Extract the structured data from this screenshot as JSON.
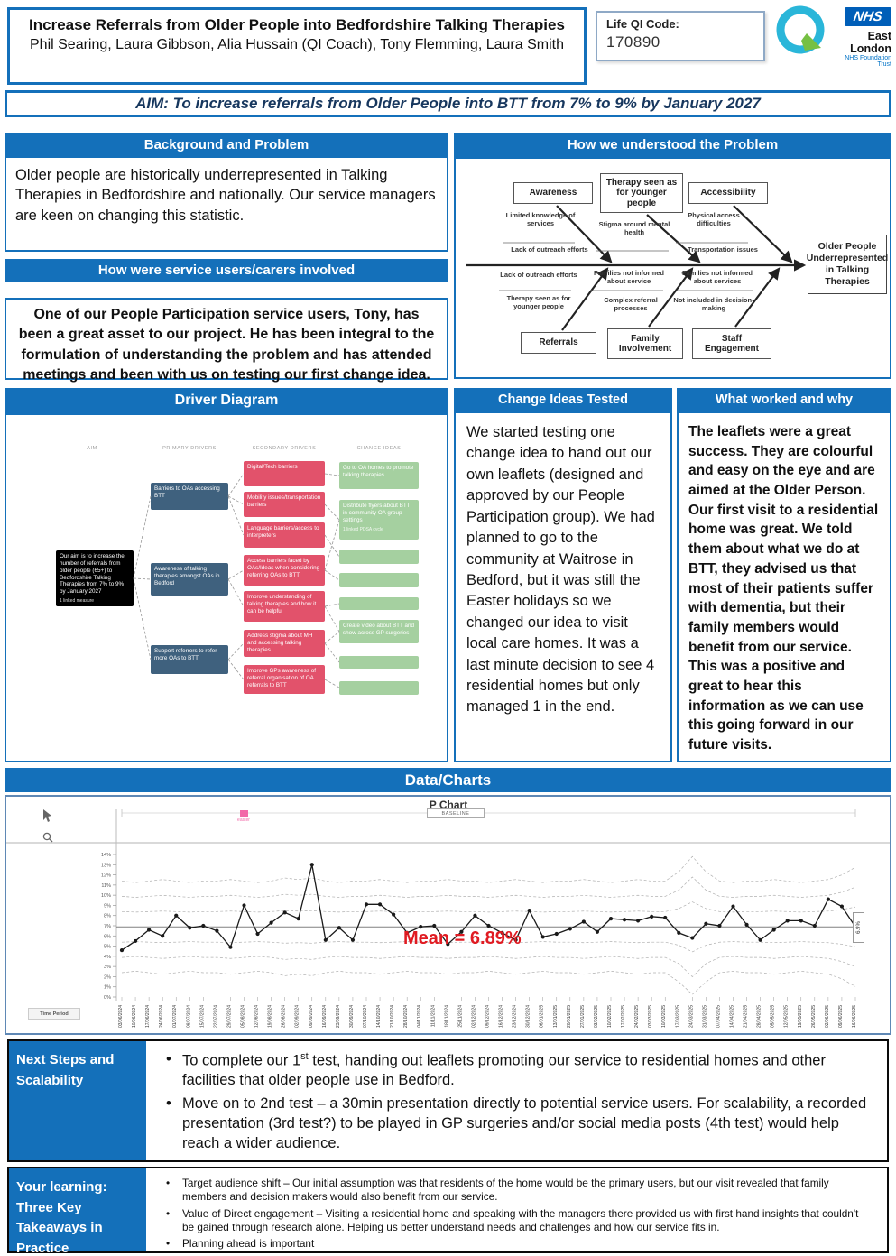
{
  "header": {
    "title": "Increase Referrals from Older People into Bedfordshire Talking Therapies",
    "authors": "Phil Searing, Laura Gibbson, Alia Hussain (QI Coach), Tony Flemming, Laura Smith",
    "life_qi_label": "Life QI Code:",
    "life_qi_code": "170890",
    "nhs": {
      "lozenge": "NHS",
      "org": "East London",
      "sub": "NHS Foundation Trust"
    }
  },
  "aim_banner": "AIM: To increase referrals from Older People into BTT from 7% to 9% by January 2027",
  "sections": {
    "background": {
      "title": "Background and Problem",
      "body": "Older people are historically underrepresented in Talking Therapies in Bedfordshire and nationally.  Our service managers are keen on changing this statistic."
    },
    "involved": {
      "title": "How were service users/carers involved",
      "body": "One of our People Participation service users, Tony, has been a great asset to our project.  He has been integral to the formulation of understanding the problem and has attended meetings and been with us on testing our first change idea."
    },
    "understood": {
      "title": "How we understood the Problem"
    },
    "driver": {
      "title": "Driver Diagram"
    },
    "change_ideas": {
      "title": "Change Ideas Tested",
      "body": "We started testing one change idea to hand out our own leaflets (designed and approved by our People Participation group).  We had planned to go to the community at Waitrose in Bedford, but it was still the Easter holidays so we changed our idea to visit local care homes. It was a last minute decision to see 4 residential homes but only managed 1 in the end."
    },
    "worked": {
      "title": "What worked and why",
      "body": "The leaflets were a great success. They are colourful and easy on the eye and are aimed at the Older Person. Our first visit to a residential home was great. We told them about what we do at BTT, they advised us that most of their patients suffer with dementia, but their family members would benefit from our service. This was a positive and great to hear this information as we can use this going forward in our future visits."
    },
    "data_charts": {
      "title": "Data/Charts"
    },
    "next_steps": {
      "title": "Next Steps and\nScalability",
      "b1_pre": "To complete our 1",
      "b1_sup": "st",
      "b1_post": " test, handing out leaflets promoting our service to residential homes and other facilities that older people use in Bedford.",
      "b2": "Move on to 2nd test – a 30min presentation directly to potential service users.  For scalability, a recorded presentation (3rd test?) to be played in GP surgeries and/or social media posts (4th test) would help reach a wider audience."
    },
    "learning": {
      "title": "Your learning:\nThree Key\nTakeaways in\nPractice",
      "bullets": [
        "Target audience shift – Our initial assumption was that residents of the home would be the primary users, but our visit revealed that family members and decision makers would also benefit from our service.",
        "Value of Direct engagement – Visiting a residential home and speaking with the managers there provided us with first hand insights that couldn't be gained through research alone. Helping us better understand needs and challenges and how our service fits in.",
        "Planning ahead is important"
      ]
    }
  },
  "fishbone": {
    "effect": "Older People Underrepresented in Talking Therapies",
    "top": [
      {
        "label": "Awareness",
        "causes": [
          "Limited knowledge of services",
          "Lack of outreach efforts"
        ]
      },
      {
        "label": "Therapy seen as for younger people",
        "causes": [
          "Stigma around mental health"
        ]
      },
      {
        "label": "Accessibility",
        "causes": [
          "Physical access difficulties",
          "Transportation issues"
        ]
      }
    ],
    "bottom": [
      {
        "label": "Referrals",
        "causes": [
          "Lack of outreach efforts",
          "Therapy seen as for younger people"
        ]
      },
      {
        "label": "Family Involvement",
        "causes": [
          "Families not informed about service",
          "Complex referral processes"
        ]
      },
      {
        "label": "Staff Engagement",
        "causes": [
          "Families not informed about services",
          "Not included in decision-making"
        ]
      }
    ]
  },
  "driver_diagram": {
    "column_headers": [
      "AIM",
      "PRIMARY DRIVERS",
      "SECONDARY DRIVERS",
      "CHANGE IDEAS"
    ],
    "aim_box": {
      "text": "Our aim is to increase the number of referrals from older people (65+) to Bedfordshire Talking Therapies from 7% to 9% by January 2027",
      "sub": "1 linked measure"
    },
    "primary": [
      "Barriers to OAs accessing BTT",
      "Awareness of talking therapies amongst OAs in Bedford",
      "Support referrers to refer more OAs to BTT"
    ],
    "secondary": [
      "Digital/Tech barriers",
      "Mobility issues/transportation barriers",
      "Language barriers/access to interpreters",
      "Access barriers faced by OAs/Ideas when considering referring OAs to BTT",
      "Improve understanding of talking therapies and how it can be helpful",
      "Address stigma about MH and accessing talking therapies",
      "Improve GPs awareness of referral organisation of OA referrals to BTT"
    ],
    "change_ideas": [
      "Go to OA homes to promote talking therapies",
      "Distribute flyers about BTT in community OA group settings",
      "",
      "",
      "",
      "Create video about BTT and show across GP surgeries",
      "",
      ""
    ],
    "change_idea_sub": "1 linked PDSA cycle"
  },
  "chart_data": {
    "type": "line",
    "title": "P Chart",
    "baseline_label": "BASELINE",
    "xlabel": "Time Period",
    "mean": 6.89,
    "mean_label": "Mean = 6.89%",
    "ylim": [
      0,
      14
    ],
    "grid": false,
    "legend_position": "top",
    "latest_value_label": "6.9%",
    "annotation": {
      "label": "easter",
      "color": "#f268a8"
    },
    "x": [
      "03/06/2024",
      "10/06/2024",
      "17/06/2024",
      "24/06/2024",
      "01/07/2024",
      "08/07/2024",
      "15/07/2024",
      "22/07/2024",
      "29/07/2024",
      "05/08/2024",
      "12/08/2024",
      "19/08/2024",
      "26/08/2024",
      "02/09/2024",
      "09/09/2024",
      "16/09/2024",
      "23/09/2024",
      "30/09/2024",
      "07/10/2024",
      "14/10/2024",
      "21/10/2024",
      "28/10/2024",
      "04/11/2024",
      "11/11/2024",
      "18/11/2024",
      "25/11/2024",
      "02/12/2024",
      "09/12/2024",
      "16/12/2024",
      "23/12/2024",
      "30/12/2024",
      "06/01/2025",
      "13/01/2025",
      "20/01/2025",
      "27/01/2025",
      "03/02/2025",
      "10/02/2025",
      "17/02/2025",
      "24/02/2025",
      "03/03/2025",
      "10/03/2025",
      "17/03/2025",
      "24/03/2025",
      "31/03/2025",
      "07/04/2025",
      "14/04/2025",
      "21/04/2025",
      "28/04/2025",
      "05/05/2025",
      "12/05/2025",
      "19/05/2025",
      "26/05/2025",
      "02/06/2025",
      "09/06/2025",
      "16/06/2025"
    ],
    "values": [
      4.6,
      5.5,
      6.6,
      6.0,
      8.0,
      6.8,
      7.0,
      6.5,
      4.9,
      9.0,
      6.2,
      7.3,
      8.3,
      7.7,
      13.0,
      5.6,
      6.8,
      5.6,
      9.1,
      9.1,
      8.1,
      6.3,
      6.9,
      7.0,
      5.2,
      6.4,
      8.0,
      7.0,
      6.3,
      5.6,
      8.5,
      5.9,
      6.2,
      6.7,
      7.4,
      6.4,
      7.7,
      7.6,
      7.5,
      7.9,
      7.8,
      6.3,
      5.8,
      7.2,
      7.0,
      8.9,
      7.1,
      5.6,
      6.6,
      7.5,
      7.5,
      7.0,
      9.6,
      8.9,
      6.9
    ],
    "sigmas": [
      1.5,
      1.45,
      1.5,
      1.55,
      1.5,
      1.45,
      1.5,
      1.5,
      1.55,
      1.5,
      1.45,
      1.5,
      1.6,
      1.55,
      1.6,
      1.5,
      1.45,
      1.5,
      1.5,
      1.55,
      1.5,
      1.45,
      1.5,
      1.5,
      1.55,
      1.5,
      1.5,
      1.45,
      1.5,
      1.55,
      1.5,
      1.45,
      1.5,
      1.5,
      1.55,
      1.5,
      1.45,
      1.5,
      1.55,
      1.5,
      1.5,
      1.8,
      2.45,
      1.8,
      1.5,
      1.45,
      1.5,
      1.5,
      1.55,
      1.5,
      1.45,
      1.5,
      1.55,
      1.7,
      1.95
    ]
  },
  "colors": {
    "bar_blue": "#1470ba",
    "primary_driver": "#3f617e",
    "secondary_driver": "#e2526b",
    "change_idea_green": "#a5d0a0",
    "mean_red": "#e01b22",
    "annotation_pink": "#f268a8",
    "nhs_blue": "#005eb8",
    "qi_teal": "#2ab6d9",
    "qi_green": "#76c043"
  }
}
